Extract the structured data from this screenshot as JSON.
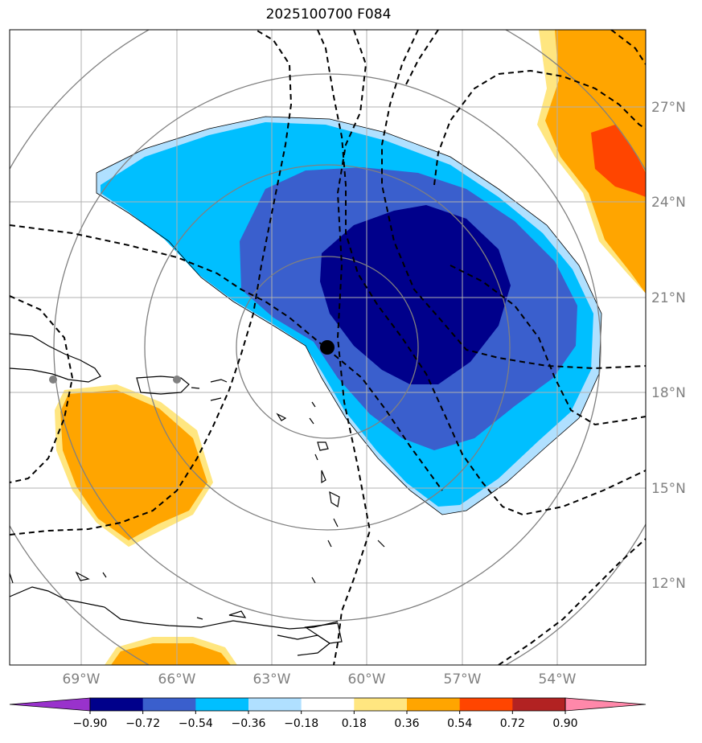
{
  "title": "2025100700 F084",
  "lat_labels": [
    "27°N",
    "24°N",
    "21°N",
    "18°N",
    "15°N",
    "12°N"
  ],
  "lon_labels": [
    "69°W",
    "66°W",
    "63°W",
    "60°W",
    "57°W",
    "54°W"
  ],
  "colorbar": {
    "ticks": [
      "−0.90",
      "−0.72",
      "−0.54",
      "−0.36",
      "−0.18",
      "0.18",
      "0.36",
      "0.54",
      "0.72",
      "0.90"
    ],
    "colors": [
      "#9932cc",
      "#00008b",
      "#3a5fcd",
      "#00bfff",
      "#b0e0ff",
      "#ffffff",
      "#ffe680",
      "#ffa500",
      "#ff4500",
      "#b22222",
      "#ff88aa"
    ]
  },
  "storm_center": {
    "lat": 19.4,
    "lon": -61.1
  }
}
